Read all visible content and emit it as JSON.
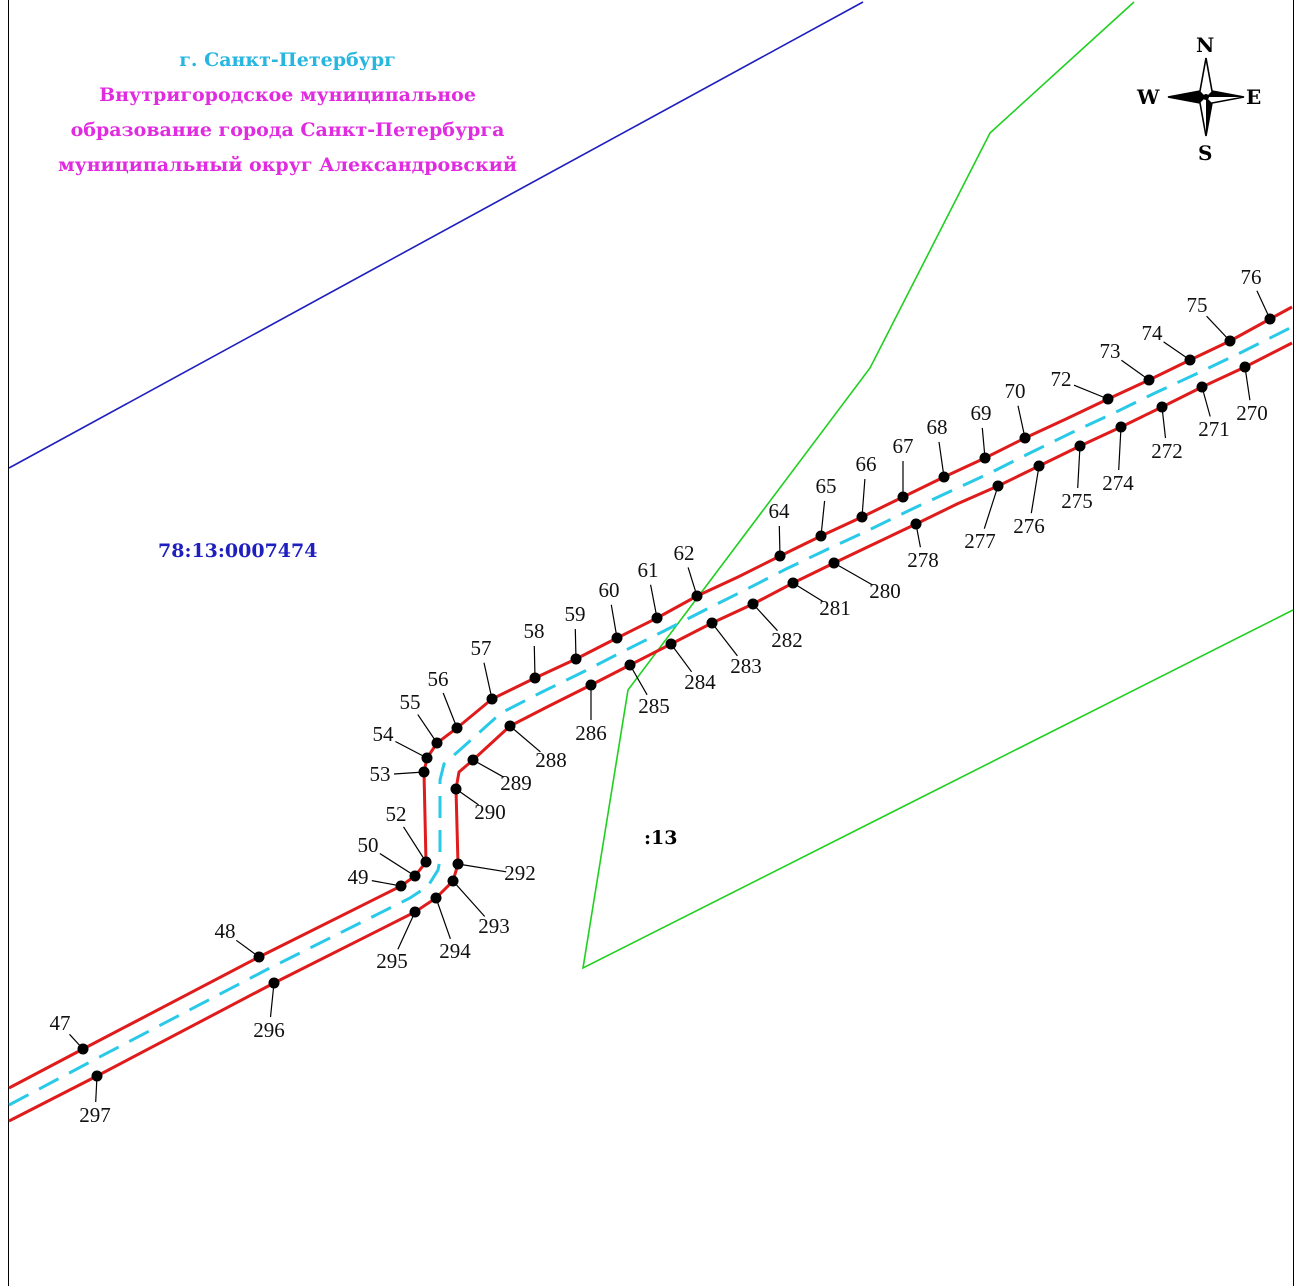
{
  "header": {
    "city": "г. Санкт-Петербург",
    "municipality_lines": [
      "Внутригородское муниципальное",
      "образование города Санкт-Петербурга",
      "муниципальный округ Александровский"
    ]
  },
  "parcels": {
    "quarter_number": "78:13:0007474",
    "parcel_number": ":13"
  },
  "compass": {
    "north": "N",
    "south": "S",
    "west": "W",
    "east": "E"
  },
  "colors": {
    "city_text": "#27b6e0",
    "municipality_text": "#e12be1",
    "quarter_boundary": "#1f1fbf",
    "parcel_boundary": "#20d020",
    "zone_boundary": "#e01b1b",
    "centerline": "#29c9e8",
    "points": "#000000"
  },
  "north_points": [
    "47",
    "48",
    "49",
    "50",
    "52",
    "53",
    "54",
    "55",
    "56",
    "57",
    "58",
    "59",
    "60",
    "61",
    "62",
    "64",
    "65",
    "66",
    "67",
    "68",
    "69",
    "70",
    "72",
    "73",
    "74",
    "75",
    "76"
  ],
  "south_points": [
    "270",
    "271",
    "272",
    "274",
    "275",
    "276",
    "277",
    "278",
    "280",
    "281",
    "282",
    "283",
    "284",
    "285",
    "286",
    "288",
    "289",
    "290",
    "292",
    "293",
    "294",
    "295",
    "296",
    "297"
  ]
}
